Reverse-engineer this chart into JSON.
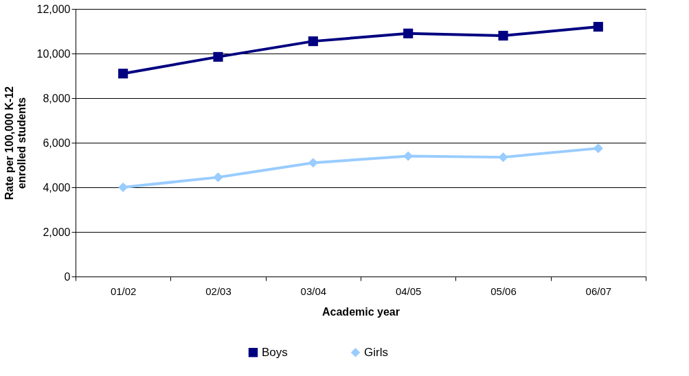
{
  "chart_data": {
    "type": "line",
    "xlabel": "Academic year",
    "ylabel": "Rate per 100,000 K-12\nenrolled students",
    "categories": [
      "01/02",
      "02/03",
      "03/04",
      "04/05",
      "05/06",
      "06/07"
    ],
    "series": [
      {
        "name": "Boys",
        "color": "#000080",
        "marker": "square",
        "values": [
          9100,
          9850,
          10550,
          10900,
          10800,
          11200
        ]
      },
      {
        "name": "Girls",
        "color": "#99ccff",
        "marker": "diamond",
        "values": [
          4000,
          4450,
          5100,
          5400,
          5350,
          5750
        ]
      }
    ],
    "ylim": [
      0,
      12000
    ],
    "yticks": [
      0,
      {
        "value": 2000,
        "label": "2,000"
      },
      {
        "value": 4000,
        "label": "4,000"
      },
      {
        "value": 6000,
        "label": "6,000"
      },
      {
        "value": 8000,
        "label": "8,000"
      },
      {
        "value": 10000,
        "label": "10,000"
      },
      {
        "value": 12000,
        "label": "12,000"
      }
    ],
    "grid": "y",
    "legend": "bottom"
  }
}
